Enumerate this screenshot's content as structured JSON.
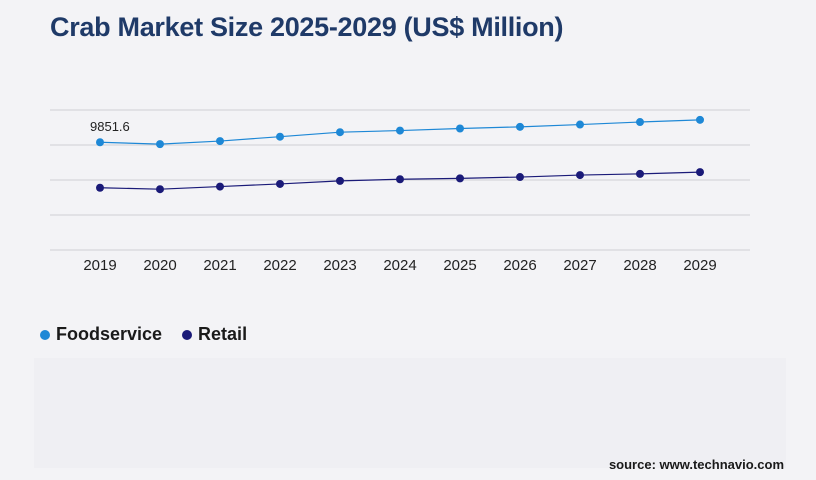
{
  "title": "Crab Market Size 2025-2029 (US$ Million)",
  "source": "source: www.technavio.com",
  "chart_data": {
    "type": "line",
    "title": "Crab Market Size 2025-2029 (US$ Million)",
    "x": [
      "2019",
      "2020",
      "2021",
      "2022",
      "2023",
      "2024",
      "2025",
      "2026",
      "2027",
      "2028",
      "2029"
    ],
    "ylim": [
      0,
      16000
    ],
    "grid": true,
    "legend_position": "bottom-left",
    "series": [
      {
        "name": "Foodservice",
        "color": "#1e88d6",
        "values": [
          9851.6,
          9680,
          9960,
          10360,
          10770,
          10920,
          11110,
          11260,
          11470,
          11700,
          11900
        ]
      },
      {
        "name": "Retail",
        "color": "#1a1a78",
        "values": [
          5690,
          5560,
          5800,
          6040,
          6320,
          6470,
          6550,
          6670,
          6850,
          6960,
          7120
        ]
      }
    ],
    "annotations": [
      {
        "series": "Foodservice",
        "x": "2019",
        "label": "9851.6"
      }
    ]
  }
}
